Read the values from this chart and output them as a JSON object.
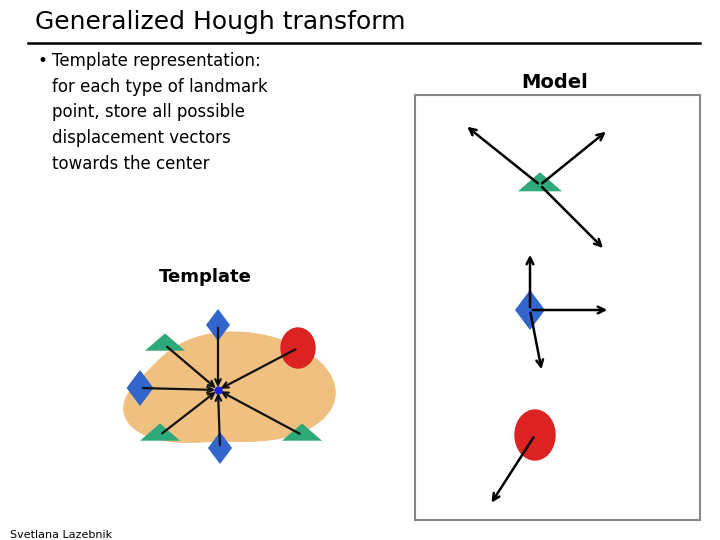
{
  "title": "Generalized Hough transform",
  "bullet_text": "Template representation:\nfor each type of landmark\npoint, store all possible\ndisplacement vectors\ntowards the center",
  "template_label": "Template",
  "model_label": "Model",
  "author": "Svetlana Lazebnik",
  "bg_color": "#ffffff",
  "blob_color": "#f0c080",
  "triangle_color": "#2eaa7a",
  "diamond_color": "#3366cc",
  "circle_color": "#dd2222",
  "center_color": "#2222dd",
  "arrow_color": "#111111",
  "model_box_color": "#888888",
  "title_fontsize": 18,
  "bullet_fontsize": 12,
  "template_label_fontsize": 13,
  "model_label_fontsize": 14,
  "author_fontsize": 8,
  "figw": 7.2,
  "figh": 5.4,
  "dpi": 100
}
